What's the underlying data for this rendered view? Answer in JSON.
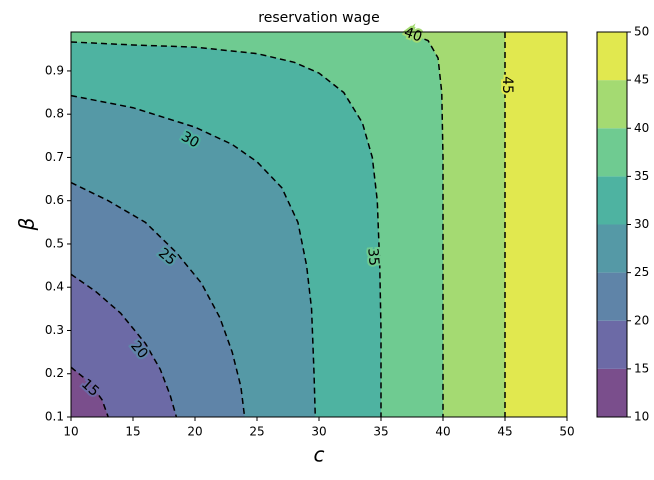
{
  "chart_data": {
    "type": "contour",
    "title": "reservation wage",
    "xlabel": "c",
    "ylabel": "β",
    "xlim": [
      10,
      50
    ],
    "ylim": [
      0.1,
      0.99
    ],
    "xticks": [
      10,
      15,
      20,
      25,
      30,
      35,
      40,
      45,
      50
    ],
    "yticks": [
      0.1,
      0.2,
      0.3,
      0.4,
      0.5,
      0.6,
      0.7,
      0.8,
      0.9
    ],
    "levels": [
      10,
      15,
      20,
      25,
      30,
      35,
      40,
      45,
      50
    ],
    "colors": [
      "#7a4e8c",
      "#6c6aa6",
      "#5f84a8",
      "#5599a6",
      "#4eb3a1",
      "#6fcb91",
      "#a4da72",
      "#e1e84f"
    ],
    "contours": [
      {
        "level": 15,
        "x": [
          10,
          11.5,
          12.5,
          13
        ],
        "y": [
          0.215,
          0.18,
          0.14,
          0.1
        ]
      },
      {
        "level": 20,
        "x": [
          10,
          12,
          14,
          16,
          17.2,
          18,
          18.5
        ],
        "y": [
          0.43,
          0.39,
          0.34,
          0.27,
          0.21,
          0.15,
          0.1
        ]
      },
      {
        "level": 25,
        "x": [
          10,
          13,
          16,
          18.5,
          20.5,
          22,
          23,
          23.7,
          24
        ],
        "y": [
          0.642,
          0.6,
          0.55,
          0.48,
          0.41,
          0.33,
          0.25,
          0.17,
          0.1
        ]
      },
      {
        "level": 30,
        "x": [
          10,
          15,
          20,
          23,
          25,
          27,
          28.3,
          29,
          29.4,
          29.6,
          29.7
        ],
        "y": [
          0.843,
          0.815,
          0.77,
          0.73,
          0.69,
          0.63,
          0.55,
          0.45,
          0.35,
          0.2,
          0.1
        ]
      },
      {
        "level": 35,
        "x": [
          10,
          15,
          20,
          25,
          28,
          30,
          32,
          33.5,
          34.3,
          34.7,
          34.9,
          35,
          35
        ],
        "y": [
          0.967,
          0.96,
          0.955,
          0.94,
          0.92,
          0.895,
          0.85,
          0.78,
          0.7,
          0.6,
          0.45,
          0.3,
          0.1
        ]
      },
      {
        "level": 40,
        "x": [
          37,
          38.8,
          39.6,
          39.9,
          40,
          40
        ],
        "y": [
          0.99,
          0.97,
          0.93,
          0.85,
          0.7,
          0.1
        ]
      },
      {
        "level": 45,
        "x": [
          45,
          45
        ],
        "y": [
          0.99,
          0.1
        ]
      }
    ]
  }
}
